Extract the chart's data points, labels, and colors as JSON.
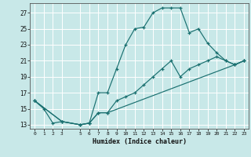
{
  "xlabel": "Humidex (Indice chaleur)",
  "background_color": "#c8e8e8",
  "grid_color": "#ffffff",
  "line_color": "#1a7070",
  "xlim": [
    -0.5,
    23.5
  ],
  "ylim": [
    12.5,
    28.2
  ],
  "xticks": [
    0,
    1,
    2,
    3,
    5,
    6,
    7,
    8,
    9,
    10,
    11,
    12,
    13,
    14,
    15,
    16,
    17,
    18,
    19,
    20,
    21,
    22,
    23
  ],
  "yticks": [
    13,
    15,
    17,
    19,
    21,
    23,
    25,
    27
  ],
  "series": [
    {
      "x": [
        0,
        1,
        2,
        3,
        5,
        6,
        7,
        8,
        9,
        10,
        11,
        12,
        13,
        14,
        15,
        16,
        17,
        18,
        19,
        20,
        21,
        22,
        23
      ],
      "y": [
        16,
        15,
        13.2,
        13.4,
        13,
        13.2,
        17,
        17,
        20,
        23,
        25,
        25.2,
        27,
        27.6,
        27.6,
        27.6,
        24.5,
        25,
        23.2,
        22,
        21,
        20.5,
        21
      ]
    },
    {
      "x": [
        0,
        3,
        5,
        6,
        7,
        8,
        9,
        10,
        11,
        12,
        13,
        14,
        15,
        16,
        17,
        18,
        19,
        20,
        21,
        22,
        23
      ],
      "y": [
        16,
        13.4,
        13,
        13.2,
        14.5,
        14.5,
        16,
        16.5,
        17,
        18,
        19,
        20,
        21,
        19,
        20,
        20.5,
        21,
        21.5,
        21,
        20.5,
        21
      ]
    },
    {
      "x": [
        0,
        3,
        5,
        6,
        7,
        8,
        22,
        23
      ],
      "y": [
        16,
        13.4,
        13,
        13.2,
        14.5,
        14.5,
        20.5,
        21
      ]
    }
  ]
}
